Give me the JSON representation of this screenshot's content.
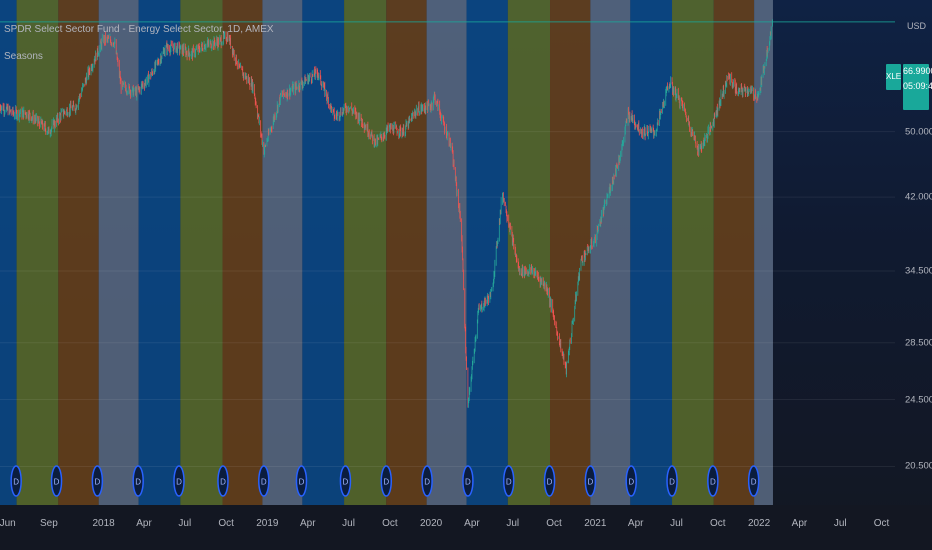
{
  "header": {
    "title": "SPDR Select Sector Fund - Energy Select Sector, 1D, AMEX",
    "indicator": "Seasons",
    "currency": "USD"
  },
  "price_badge": {
    "ticker": "XLE",
    "last_price": "66.9900",
    "countdown": "05:09:48"
  },
  "colors": {
    "background": "#131722",
    "winter": "#5b6b84",
    "spring": "#0b4a8a",
    "summer": "#5a6d2c",
    "autumn": "#6a421a",
    "price_line": "#19a89a",
    "candle_up": "#26a69a",
    "candle_down": "#ef5350",
    "dividend_marker": "#2962ff"
  },
  "chart_data": {
    "type": "candlestick",
    "title": "SPDR Select Sector Fund - Energy Select Sector, 1D, AMEX",
    "scale": "log",
    "ylabel": "USD",
    "xlim": [
      "2017-05-15",
      "2022-10-31"
    ],
    "ylim": [
      18.5,
      71
    ],
    "x_ticks": [
      "Jun",
      "Sep",
      "2018",
      "Apr",
      "Jul",
      "Oct",
      "2019",
      "Apr",
      "Jul",
      "Oct",
      "2020",
      "Apr",
      "Jul",
      "Oct",
      "2021",
      "Apr",
      "Jul",
      "Oct",
      "2022",
      "Apr",
      "Jul",
      "Oct"
    ],
    "y_ticks": [
      "20.5000",
      "24.5000",
      "28.5000",
      "34.5000",
      "42.0000",
      "50.0000"
    ],
    "last_price": 66.99,
    "price_series": {
      "name": "XLE",
      "dates": [
        "2017-05-15",
        "2017-06-15",
        "2017-07-15",
        "2017-08-15",
        "2017-08-31",
        "2017-09-30",
        "2017-10-31",
        "2017-12-01",
        "2018-01-01",
        "2018-01-25",
        "2018-02-09",
        "2018-03-15",
        "2018-04-15",
        "2018-05-20",
        "2018-06-15",
        "2018-07-15",
        "2018-08-15",
        "2018-09-15",
        "2018-10-05",
        "2018-10-31",
        "2018-11-30",
        "2018-12-24",
        "2019-01-31",
        "2019-02-28",
        "2019-03-31",
        "2019-04-23",
        "2019-05-31",
        "2019-06-30",
        "2019-07-31",
        "2019-08-31",
        "2019-09-30",
        "2019-10-31",
        "2019-11-30",
        "2019-12-31",
        "2020-01-08",
        "2020-02-15",
        "2020-03-08",
        "2020-03-23",
        "2020-04-15",
        "2020-05-15",
        "2020-06-08",
        "2020-07-15",
        "2020-08-15",
        "2020-09-15",
        "2020-10-28",
        "2020-11-30",
        "2020-12-31",
        "2021-01-31",
        "2021-02-28",
        "2021-03-15",
        "2021-04-15",
        "2021-05-15",
        "2021-06-15",
        "2021-07-15",
        "2021-08-20",
        "2021-09-15",
        "2021-10-25",
        "2021-11-15",
        "2021-12-01",
        "2021-12-31",
        "2022-01-31"
      ],
      "close": [
        53.5,
        52.5,
        52.5,
        51.0,
        50.0,
        52.5,
        53.5,
        59.0,
        64.0,
        63.5,
        56.5,
        55.5,
        58.0,
        62.5,
        62.5,
        61.5,
        63.0,
        63.5,
        64.5,
        59.0,
        56.5,
        47.5,
        55.0,
        56.0,
        57.5,
        58.5,
        52.0,
        53.5,
        51.5,
        48.5,
        50.5,
        50.0,
        53.0,
        53.5,
        55.0,
        48.0,
        39.0,
        24.0,
        31.0,
        32.5,
        42.5,
        34.5,
        34.5,
        33.0,
        26.5,
        35.5,
        37.5,
        42.5,
        47.5,
        52.5,
        50.0,
        50.0,
        57.0,
        53.5,
        47.5,
        50.5,
        58.0,
        55.5,
        56.0,
        55.0,
        66.9
      ],
      "note": "approximate daily-close path read off a log price axis"
    },
    "seasons": [
      {
        "name": "Spring",
        "start": "2017-03-20",
        "end": "2017-06-21"
      },
      {
        "name": "Summer",
        "start": "2017-06-21",
        "end": "2017-09-22"
      },
      {
        "name": "Autumn",
        "start": "2017-09-22",
        "end": "2017-12-21"
      },
      {
        "name": "Winter",
        "start": "2017-12-21",
        "end": "2018-03-20"
      },
      {
        "name": "Spring",
        "start": "2018-03-20",
        "end": "2018-06-21"
      },
      {
        "name": "Summer",
        "start": "2018-06-21",
        "end": "2018-09-23"
      },
      {
        "name": "Autumn",
        "start": "2018-09-23",
        "end": "2018-12-21"
      },
      {
        "name": "Winter",
        "start": "2018-12-21",
        "end": "2019-03-20"
      },
      {
        "name": "Spring",
        "start": "2019-03-20",
        "end": "2019-06-21"
      },
      {
        "name": "Summer",
        "start": "2019-06-21",
        "end": "2019-09-23"
      },
      {
        "name": "Autumn",
        "start": "2019-09-23",
        "end": "2019-12-22"
      },
      {
        "name": "Winter",
        "start": "2019-12-22",
        "end": "2020-03-20"
      },
      {
        "name": "Spring",
        "start": "2020-03-20",
        "end": "2020-06-20"
      },
      {
        "name": "Summer",
        "start": "2020-06-20",
        "end": "2020-09-22"
      },
      {
        "name": "Autumn",
        "start": "2020-09-22",
        "end": "2020-12-21"
      },
      {
        "name": "Winter",
        "start": "2020-12-21",
        "end": "2021-03-20"
      },
      {
        "name": "Spring",
        "start": "2021-03-20",
        "end": "2021-06-21"
      },
      {
        "name": "Summer",
        "start": "2021-06-21",
        "end": "2021-09-22"
      },
      {
        "name": "Autumn",
        "start": "2021-09-22",
        "end": "2021-12-21"
      },
      {
        "name": "Winter",
        "start": "2021-12-21",
        "end": "2022-02-01"
      }
    ],
    "dividend_dates": [
      "2017-06-20",
      "2017-09-18",
      "2017-12-18",
      "2018-03-19",
      "2018-06-18",
      "2018-09-24",
      "2018-12-24",
      "2019-03-18",
      "2019-06-24",
      "2019-09-23",
      "2019-12-23",
      "2020-03-23",
      "2020-06-22",
      "2020-09-21",
      "2020-12-21",
      "2021-03-22",
      "2021-06-21",
      "2021-09-20",
      "2021-12-20"
    ],
    "dividend_label": "D",
    "grid": true,
    "legend": "none"
  }
}
